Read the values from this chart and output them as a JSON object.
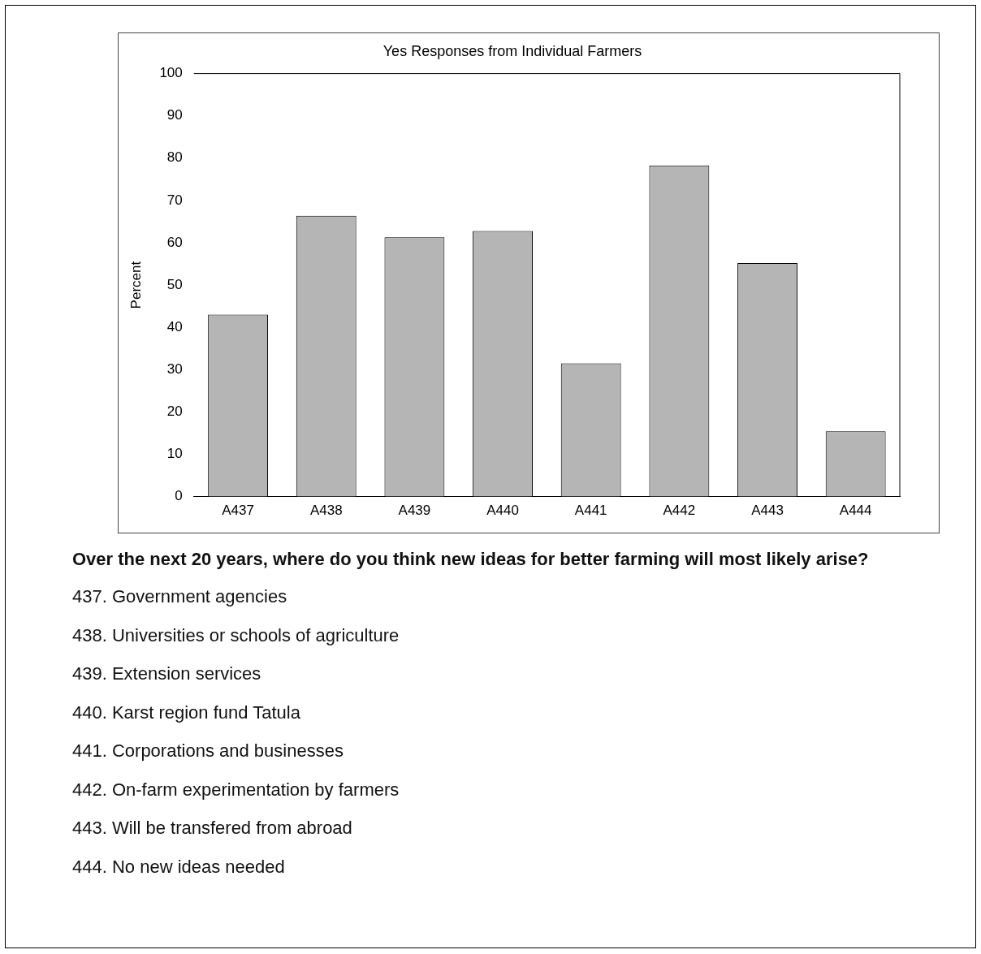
{
  "chart_data": {
    "type": "bar",
    "title": "Yes Responses from Individual Farmers",
    "ylabel": "Percent",
    "categories": [
      "A437",
      "A438",
      "A439",
      "A440",
      "A441",
      "A442",
      "A443",
      "A444"
    ],
    "values": [
      43.0,
      66.4,
      61.3,
      62.8,
      31.5,
      78.3,
      55.2,
      15.4
    ],
    "color": "#b5b5b5",
    "ylim": [
      0,
      100
    ],
    "yticks": [
      0,
      10,
      20,
      30,
      40,
      50,
      60,
      70,
      80,
      90,
      100
    ],
    "grid": false,
    "legend": false,
    "annotations": [
      "Over the next 20 years, where do you think new ideas for better farming will most likely arise?",
      "437. Government agencies",
      "438. Universities or schools of agriculture",
      "439. Extension services",
      "440. Karst region fund Tatula",
      "441. Corporations and businesses",
      "442. On-farm experimentation by farmers",
      "443. Will be transfered from abroad",
      "444. No new ideas needed"
    ]
  }
}
